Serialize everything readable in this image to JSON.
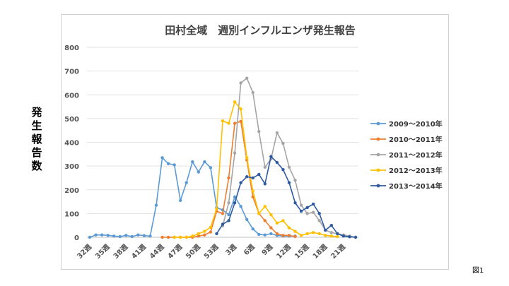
{
  "figure_label": "図1",
  "chart_data": {
    "type": "line",
    "title": "田村全域　週別インフルエンザ発生報告",
    "ylabel": "発生報告数",
    "xlabel": "",
    "ylim": [
      0,
      800
    ],
    "yticks": [
      0,
      100,
      200,
      300,
      400,
      500,
      600,
      700,
      800
    ],
    "categories": [
      "32週",
      "33週",
      "34週",
      "35週",
      "36週",
      "37週",
      "38週",
      "39週",
      "40週",
      "41週",
      "42週",
      "43週",
      "44週",
      "45週",
      "46週",
      "47週",
      "48週",
      "49週",
      "50週",
      "51週",
      "52週",
      "53週",
      "1週",
      "2週",
      "3週",
      "4週",
      "5週",
      "6週",
      "7週",
      "8週",
      "9週",
      "10週",
      "11週",
      "12週",
      "13週",
      "14週",
      "15週",
      "16週",
      "17週",
      "18週",
      "19週",
      "20週",
      "21週",
      "22週",
      "23週"
    ],
    "tick_labels": [
      "32週",
      "35週",
      "38週",
      "41週",
      "44週",
      "47週",
      "50週",
      "53週",
      "3週",
      "6週",
      "9週",
      "12週",
      "15週",
      "18週",
      "21週"
    ],
    "grid": true,
    "legend_position": "right",
    "series": [
      {
        "name": "2009～2010年",
        "color": "#5b9bd5",
        "values": [
          0,
          10,
          10,
          8,
          5,
          3,
          8,
          3,
          10,
          7,
          5,
          135,
          335,
          310,
          305,
          155,
          230,
          318,
          275,
          318,
          293,
          125,
          115,
          95,
          170,
          130,
          75,
          35,
          12,
          10,
          15,
          8,
          5,
          5,
          5,
          null,
          null,
          null,
          null,
          null,
          null,
          null,
          null,
          null,
          null
        ]
      },
      {
        "name": "2010～2011年",
        "color": "#ed7d31",
        "values": [
          null,
          null,
          null,
          null,
          null,
          null,
          null,
          null,
          null,
          null,
          null,
          null,
          0,
          0,
          0,
          0,
          0,
          0,
          5,
          10,
          22,
          110,
          100,
          250,
          480,
          488,
          325,
          170,
          100,
          70,
          40,
          15,
          8,
          8,
          3,
          null,
          null,
          null,
          null,
          null,
          null,
          null,
          null,
          null,
          null
        ]
      },
      {
        "name": "2011～2012年",
        "color": "#a5a5a5",
        "values": [
          null,
          null,
          null,
          null,
          null,
          null,
          null,
          null,
          null,
          null,
          null,
          null,
          null,
          null,
          null,
          null,
          null,
          null,
          null,
          null,
          null,
          null,
          48,
          145,
          355,
          650,
          670,
          610,
          445,
          295,
          330,
          440,
          395,
          295,
          240,
          135,
          100,
          105,
          70,
          30,
          20,
          15,
          10,
          5,
          0
        ]
      },
      {
        "name": "2012～2013年",
        "color": "#ffc000",
        "values": [
          null,
          null,
          null,
          null,
          null,
          null,
          null,
          null,
          null,
          null,
          null,
          null,
          null,
          null,
          0,
          0,
          0,
          5,
          15,
          25,
          42,
          120,
          490,
          480,
          570,
          540,
          335,
          195,
          100,
          130,
          95,
          60,
          70,
          40,
          25,
          8,
          15,
          20,
          15,
          8,
          5,
          3,
          null,
          null,
          null
        ]
      },
      {
        "name": "2013～2014年",
        "color": "#2e5aa1",
        "values": [
          null,
          null,
          null,
          null,
          null,
          null,
          null,
          null,
          null,
          null,
          null,
          null,
          null,
          null,
          null,
          null,
          null,
          null,
          null,
          null,
          null,
          15,
          55,
          70,
          145,
          230,
          255,
          250,
          265,
          225,
          340,
          315,
          285,
          230,
          145,
          110,
          125,
          140,
          100,
          30,
          50,
          15,
          5,
          2,
          0
        ]
      }
    ]
  }
}
